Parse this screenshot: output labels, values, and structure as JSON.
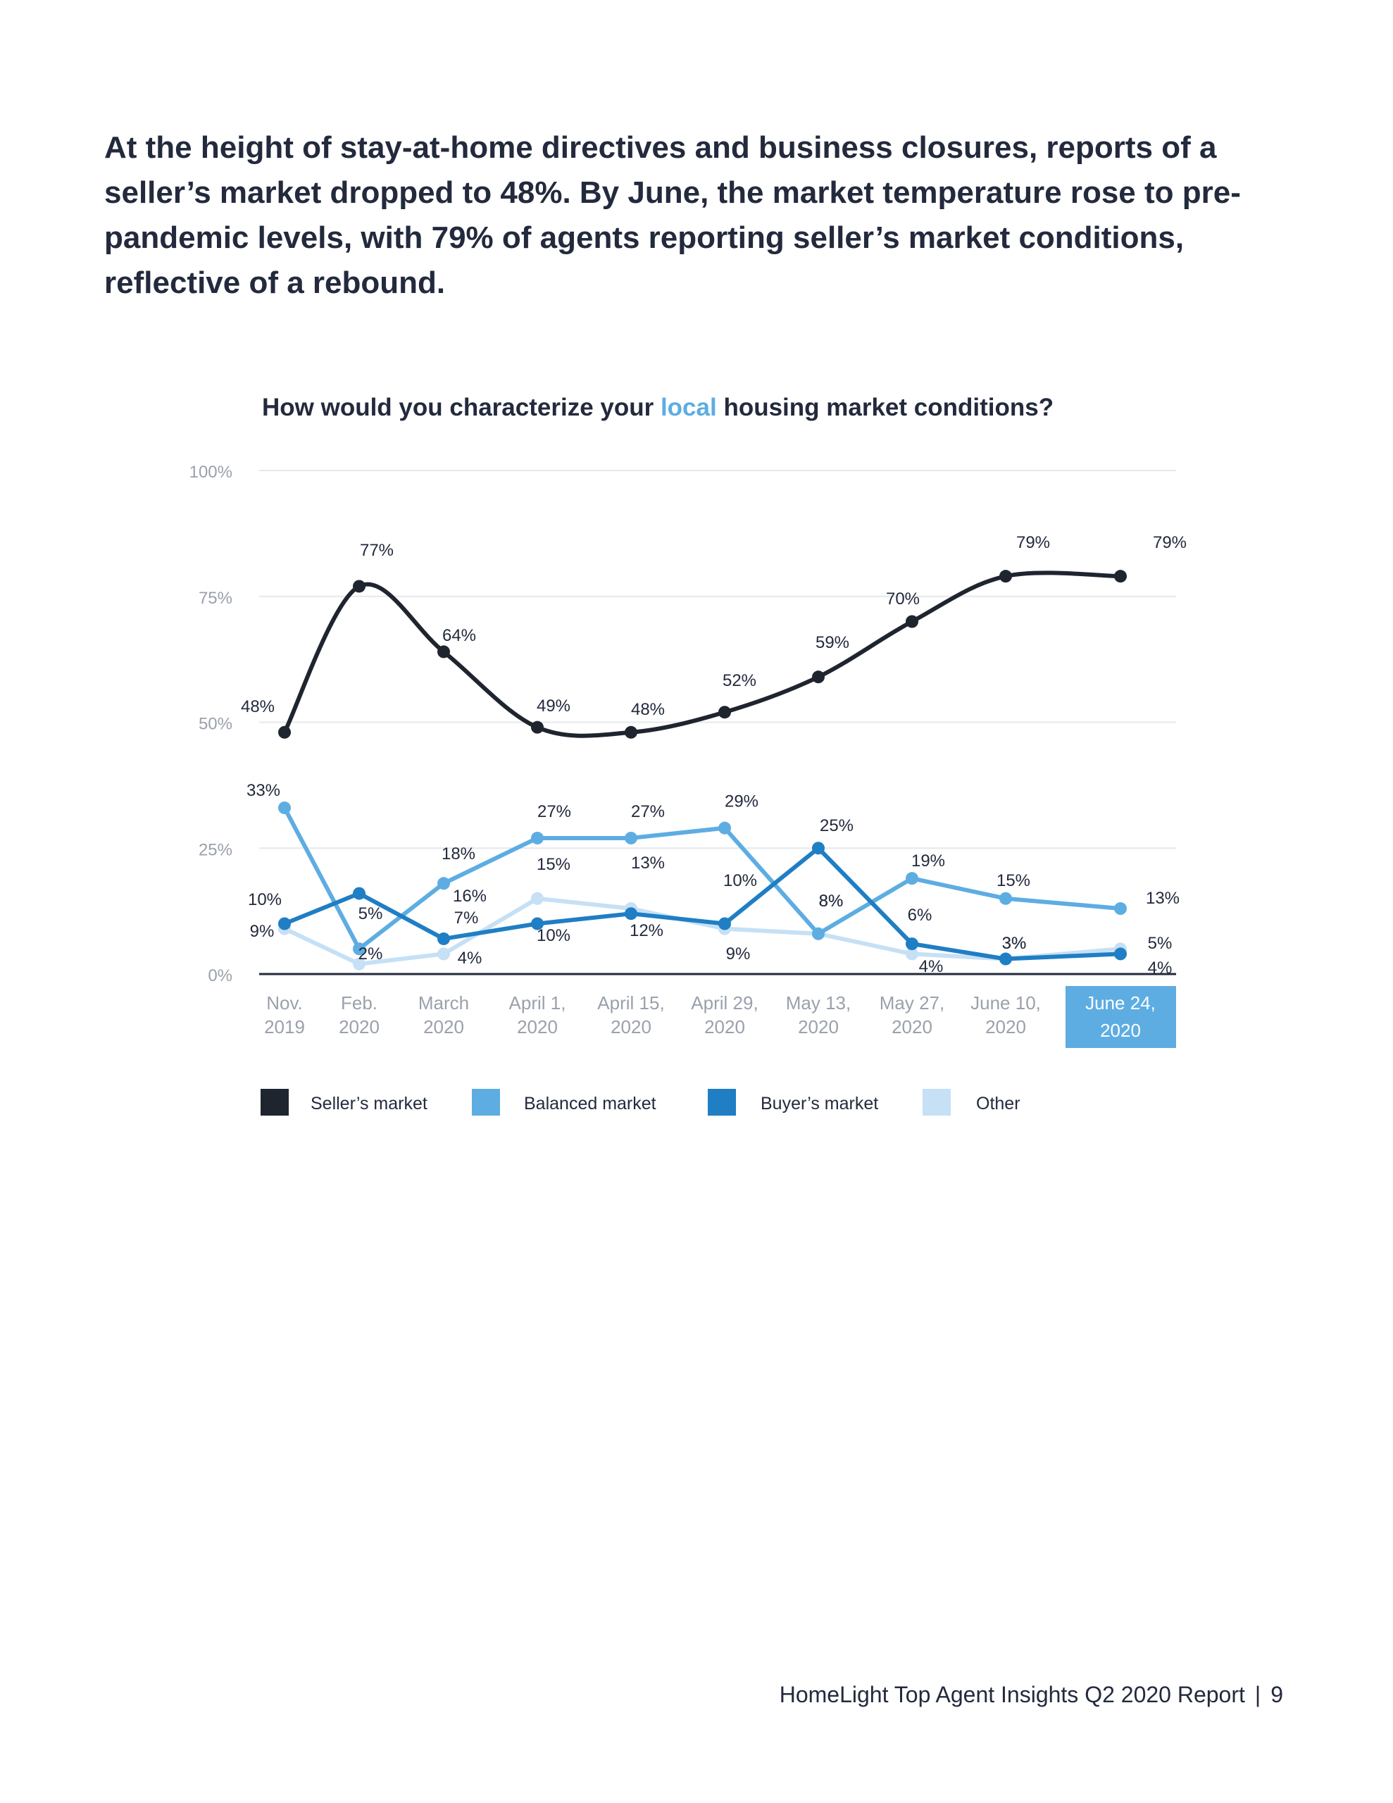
{
  "intro": "At the height of stay-at-home directives and business closures, reports of a seller’s market dropped to 48%. By June, the market temperature rose to pre-pandemic levels, with 79% of agents reporting seller’s market conditions, reflective of a rebound.",
  "chart_data": {
    "type": "line",
    "title_parts": [
      "How would you characterize your ",
      "local",
      " housing market conditions?"
    ],
    "categories": [
      [
        "Nov.",
        "2019"
      ],
      [
        "Feb.",
        "2020"
      ],
      [
        "March",
        "2020"
      ],
      [
        "April 1,",
        "2020"
      ],
      [
        "April 15,",
        "2020"
      ],
      [
        "April 29,",
        "2020"
      ],
      [
        "May 13,",
        "2020"
      ],
      [
        "May 27,",
        "2020"
      ],
      [
        "June 10,",
        "2020"
      ],
      [
        "June 24,",
        "2020"
      ]
    ],
    "highlighted_category": 9,
    "y_ticks": [
      "0%",
      "25%",
      "50%",
      "75%",
      "100%"
    ],
    "ylim": [
      0,
      100
    ],
    "series": [
      {
        "name": "Seller’s market",
        "color": "#1f252e",
        "values": [
          48,
          77,
          64,
          49,
          48,
          52,
          59,
          70,
          79,
          79
        ],
        "labels": [
          "48%",
          "77%",
          "64%",
          "49%",
          "48%",
          "52%",
          "59%",
          "70%",
          "79%",
          "79%"
        ]
      },
      {
        "name": "Balanced market",
        "color": "#5dade2",
        "values": [
          33,
          5,
          18,
          27,
          27,
          29,
          8,
          19,
          15,
          13
        ],
        "labels": [
          "33%",
          "5%",
          "18%",
          "27%",
          "27%",
          "29%",
          "8%",
          "19%",
          "15%",
          "13%"
        ]
      },
      {
        "name": "Buyer’s market",
        "color": "#1f7ec4",
        "values": [
          10,
          16,
          7,
          10,
          12,
          10,
          25,
          6,
          3,
          4
        ],
        "labels": [
          "10%",
          "16%",
          "7%",
          "10%",
          "12%",
          "10%",
          "25%",
          "6%",
          "3%",
          "4%"
        ]
      },
      {
        "name": "Other",
        "color": "#c6e0f5",
        "values": [
          9,
          2,
          4,
          15,
          13,
          9,
          8,
          4,
          3,
          5
        ],
        "labels": [
          "9%",
          "2%",
          "4%",
          "15%",
          "13%",
          "9%",
          "8%",
          "4%",
          "3%",
          "5%"
        ]
      }
    ],
    "title_accent_color": "#5dade2",
    "highlight_color": "#5dade2"
  },
  "footer": {
    "report": "HomeLight Top Agent Insights Q2 2020 Report",
    "separator": "|",
    "page": "9"
  }
}
